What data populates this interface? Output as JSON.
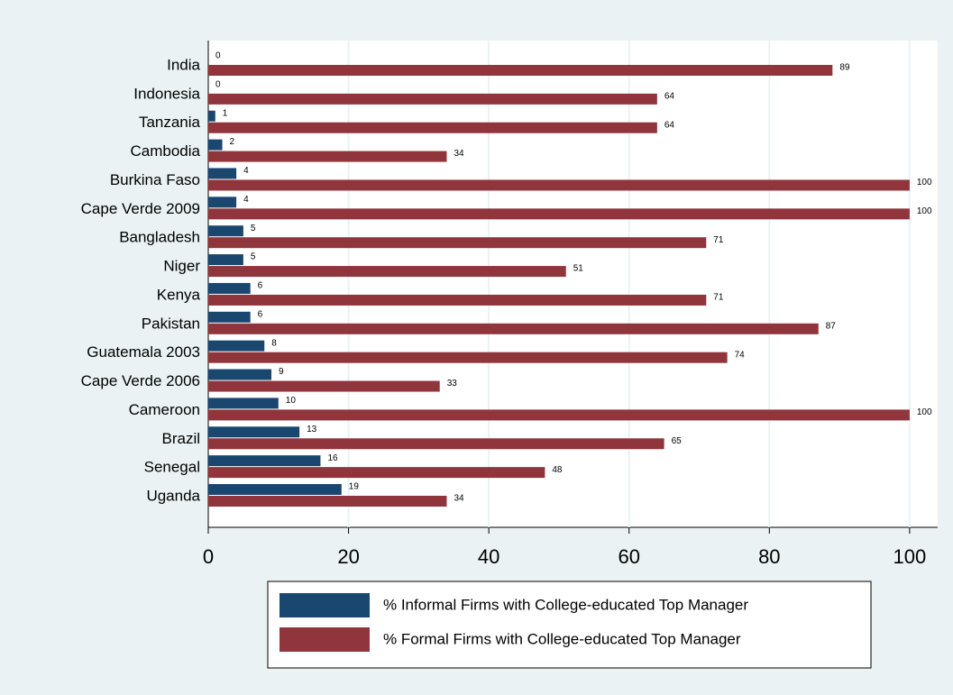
{
  "chart_data": {
    "type": "bar",
    "orientation": "horizontal",
    "categories": [
      "India",
      "Indonesia",
      "Tanzania",
      "Cambodia",
      "Burkina Faso",
      "Cape Verde 2009",
      "Bangladesh",
      "Niger",
      "Kenya",
      "Pakistan",
      "Guatemala 2003",
      "Cape Verde 2006",
      "Cameroon",
      "Brazil",
      "Senegal",
      "Uganda"
    ],
    "series": [
      {
        "name": "% Informal Firms with College-educated Top Manager",
        "color": "#1a476f",
        "values": [
          0,
          0,
          1,
          2,
          4,
          4,
          5,
          5,
          6,
          6,
          8,
          9,
          10,
          13,
          16,
          19
        ]
      },
      {
        "name": "% Formal Firms with College-educated Top Manager",
        "color": "#90353b",
        "values": [
          89,
          64,
          64,
          34,
          100,
          100,
          71,
          51,
          71,
          87,
          74,
          33,
          100,
          65,
          48,
          34
        ]
      }
    ],
    "xlim": [
      0,
      104
    ],
    "xticks": [
      0,
      20,
      40,
      60,
      80,
      100
    ],
    "grid": true,
    "legend": "bottom"
  }
}
